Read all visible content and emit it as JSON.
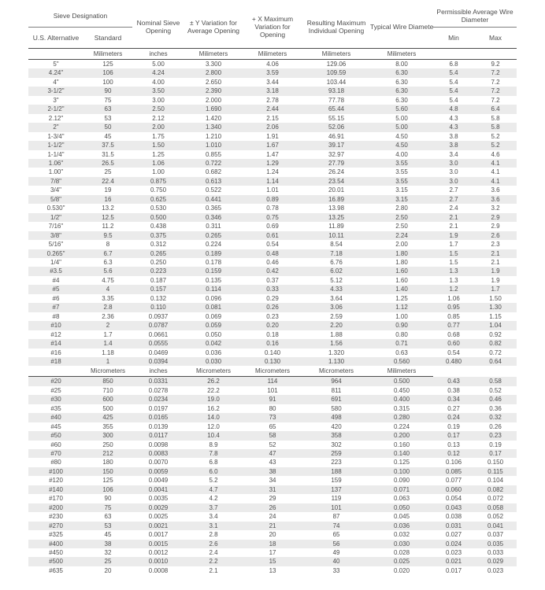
{
  "colors": {
    "text": "#4d4d4d",
    "rule": "#4d4d4d",
    "group_rule": "#7f7f7f",
    "row_stripe": "#ebebeb",
    "background": "#ffffff"
  },
  "table": {
    "header": {
      "sieve_designation": "Sieve Designation",
      "us_alternative": "U.S. Alternative",
      "standard": "Standard",
      "nominal_sieve_opening": "Nominal Sieve Opening",
      "y_variation": "± Y Variation for Average Opening",
      "x_max_variation": "+ X Maximum Variation for Opening",
      "resulting_max": "Resulting Maximum Individual Opening",
      "typical_wire": "Typical  Wire  Diameter",
      "permissible_avg_wire": "Permissible Average Wire Diameter",
      "min": "Min",
      "max": "Max"
    },
    "column_keys": [
      "us-alternative",
      "standard",
      "nominal-inches",
      "y-variation",
      "x-max-variation",
      "resulting-max",
      "typical-wire",
      "wire-min",
      "wire-max"
    ],
    "units_row_1": [
      "",
      "Milimeters",
      "inches",
      "Milimeters",
      "Milimeters",
      "Milimeters",
      "Milimeters",
      "",
      ""
    ],
    "units_row_2": [
      "",
      "Micrometers",
      "inches",
      "Micrometers",
      "Micrometers",
      "Micrometers",
      "Milimeters",
      "",
      ""
    ],
    "rows_coarse": [
      [
        "5\"",
        "125",
        "5.00",
        "3.300",
        "4.06",
        "129.06",
        "8.00",
        "6.8",
        "9.2"
      ],
      [
        "4.24\"",
        "106",
        "4.24",
        "2.800",
        "3.59",
        "109.59",
        "6.30",
        "5.4",
        "7.2"
      ],
      [
        "4\"",
        "100",
        "4.00",
        "2.650",
        "3.44",
        "103.44",
        "6.30",
        "5.4",
        "7.2"
      ],
      [
        "3-1/2\"",
        "90",
        "3.50",
        "2.390",
        "3.18",
        "93.18",
        "6.30",
        "5.4",
        "7.2"
      ],
      [
        "3\"",
        "75",
        "3.00",
        "2.000",
        "2.78",
        "77.78",
        "6.30",
        "5.4",
        "7.2"
      ],
      [
        "2-1/2\"",
        "63",
        "2.50",
        "1.690",
        "2.44",
        "65.44",
        "5.60",
        "4.8",
        "6.4"
      ],
      [
        "2.12\"",
        "53",
        "2.12",
        "1.420",
        "2.15",
        "55.15",
        "5.00",
        "4.3",
        "5.8"
      ],
      [
        "2\"",
        "50",
        "2.00",
        "1.340",
        "2.06",
        "52.06",
        "5.00",
        "4.3",
        "5.8"
      ],
      [
        "1-3/4\"",
        "45",
        "1.75",
        "1.210",
        "1.91",
        "46.91",
        "4.50",
        "3.8",
        "5.2"
      ],
      [
        "1-1/2\"",
        "37.5",
        "1.50",
        "1.010",
        "1.67",
        "39.17",
        "4.50",
        "3.8",
        "5.2"
      ],
      [
        "1-1/4\"",
        "31.5",
        "1.25",
        "0.855",
        "1.47",
        "32.97",
        "4.00",
        "3.4",
        "4.6"
      ],
      [
        "1.06\"",
        "26.5",
        "1.06",
        "0.722",
        "1.29",
        "27.79",
        "3.55",
        "3.0",
        "4.1"
      ],
      [
        "1.00\"",
        "25",
        "1.00",
        "0.682",
        "1.24",
        "26.24",
        "3.55",
        "3.0",
        "4.1"
      ],
      [
        "7/8\"",
        "22.4",
        "0.875",
        "0.613",
        "1.14",
        "23.54",
        "3.55",
        "3.0",
        "4.1"
      ],
      [
        "3/4\"",
        "19",
        "0.750",
        "0.522",
        "1.01",
        "20.01",
        "3.15",
        "2.7",
        "3.6"
      ],
      [
        "5/8\"",
        "16",
        "0.625",
        "0.441",
        "0.89",
        "16.89",
        "3.15",
        "2.7",
        "3.6"
      ],
      [
        "0.530\"",
        "13.2",
        "0.530",
        "0.365",
        "0.78",
        "13.98",
        "2.80",
        "2.4",
        "3.2"
      ],
      [
        "1/2\"",
        "12.5",
        "0.500",
        "0.346",
        "0.75",
        "13.25",
        "2.50",
        "2.1",
        "2.9"
      ],
      [
        "7/16\"",
        "11.2",
        "0.438",
        "0.311",
        "0.69",
        "11.89",
        "2.50",
        "2.1",
        "2.9"
      ],
      [
        "3/8\"",
        "9.5",
        "0.375",
        "0.265",
        "0.61",
        "10.11",
        "2.24",
        "1.9",
        "2.6"
      ],
      [
        "5/16\"",
        "8",
        "0.312",
        "0.224",
        "0.54",
        "8.54",
        "2.00",
        "1.7",
        "2.3"
      ],
      [
        "0.265\"",
        "6.7",
        "0.265",
        "0.189",
        "0.48",
        "7.18",
        "1.80",
        "1.5",
        "2.1"
      ],
      [
        "1/4\"",
        "6.3",
        "0.250",
        "0.178",
        "0.46",
        "6.76",
        "1.80",
        "1.5",
        "2.1"
      ],
      [
        "#3.5",
        "5.6",
        "0.223",
        "0.159",
        "0.42",
        "6.02",
        "1.60",
        "1.3",
        "1.9"
      ],
      [
        "#4",
        "4.75",
        "0.187",
        "0.135",
        "0.37",
        "5.12",
        "1.60",
        "1.3",
        "1.9"
      ],
      [
        "#5",
        "4",
        "0.157",
        "0.114",
        "0.33",
        "4.33",
        "1.40",
        "1.2",
        "1.7"
      ],
      [
        "#6",
        "3.35",
        "0.132",
        "0.096",
        "0.29",
        "3.64",
        "1.25",
        "1.06",
        "1.50"
      ],
      [
        "#7",
        "2.8",
        "0.110",
        "0.081",
        "0.26",
        "3.06",
        "1.12",
        "0.95",
        "1.30"
      ],
      [
        "#8",
        "2.36",
        "0.0937",
        "0.069",
        "0.23",
        "2.59",
        "1.00",
        "0.85",
        "1.15"
      ],
      [
        "#10",
        "2",
        "0.0787",
        "0.059",
        "0.20",
        "2.20",
        "0.90",
        "0.77",
        "1.04"
      ],
      [
        "#12",
        "1.7",
        "0.0661",
        "0.050",
        "0.18",
        "1.88",
        "0.80",
        "0.68",
        "0.92"
      ],
      [
        "#14",
        "1.4",
        "0.0555",
        "0.042",
        "0.16",
        "1.56",
        "0.71",
        "0.60",
        "0.82"
      ],
      [
        "#16",
        "1.18",
        "0.0469",
        "0.036",
        "0.140",
        "1.320",
        "0.63",
        "0.54",
        "0.72"
      ],
      [
        "#18",
        "1",
        "0.0394",
        "0.030",
        "0.130",
        "1.130",
        "0.560",
        "0.480",
        "0.64"
      ]
    ],
    "rows_fine": [
      [
        "#20",
        "850",
        "0.0331",
        "26.2",
        "114",
        "964",
        "0.500",
        "0.43",
        "0.58"
      ],
      [
        "#25",
        "710",
        "0.0278",
        "22.2",
        "101",
        "811",
        "0.450",
        "0.38",
        "0.52"
      ],
      [
        "#30",
        "600",
        "0.0234",
        "19.0",
        "91",
        "691",
        "0.400",
        "0.34",
        "0.46"
      ],
      [
        "#35",
        "500",
        "0.0197",
        "16.2",
        "80",
        "580",
        "0.315",
        "0.27",
        "0.36"
      ],
      [
        "#40",
        "425",
        "0.0165",
        "14.0",
        "73",
        "498",
        "0.280",
        "0.24",
        "0.32"
      ],
      [
        "#45",
        "355",
        "0.0139",
        "12.0",
        "65",
        "420",
        "0.224",
        "0.19",
        "0.26"
      ],
      [
        "#50",
        "300",
        "0.0117",
        "10.4",
        "58",
        "358",
        "0.200",
        "0.17",
        "0.23"
      ],
      [
        "#60",
        "250",
        "0.0098",
        "8.9",
        "52",
        "302",
        "0.160",
        "0.13",
        "0.19"
      ],
      [
        "#70",
        "212",
        "0.0083",
        "7.8",
        "47",
        "259",
        "0.140",
        "0.12",
        "0.17"
      ],
      [
        "#80",
        "180",
        "0.0070",
        "6.8",
        "43",
        "223",
        "0.125",
        "0.106",
        "0.150"
      ],
      [
        "#100",
        "150",
        "0.0059",
        "6.0",
        "38",
        "188",
        "0.100",
        "0.085",
        "0.115"
      ],
      [
        "#120",
        "125",
        "0.0049",
        "5.2",
        "34",
        "159",
        "0.090",
        "0.077",
        "0.104"
      ],
      [
        "#140",
        "106",
        "0.0041",
        "4.7",
        "31",
        "137",
        "0.071",
        "0.060",
        "0.082"
      ],
      [
        "#170",
        "90",
        "0.0035",
        "4.2",
        "29",
        "119",
        "0.063",
        "0.054",
        "0.072"
      ],
      [
        "#200",
        "75",
        "0.0029",
        "3.7",
        "26",
        "101",
        "0.050",
        "0.043",
        "0.058"
      ],
      [
        "#230",
        "63",
        "0.0025",
        "3.4",
        "24",
        "87",
        "0.045",
        "0.038",
        "0.052"
      ],
      [
        "#270",
        "53",
        "0.0021",
        "3.1",
        "21",
        "74",
        "0.036",
        "0.031",
        "0.041"
      ],
      [
        "#325",
        "45",
        "0.0017",
        "2.8",
        "20",
        "65",
        "0.032",
        "0.027",
        "0.037"
      ],
      [
        "#400",
        "38",
        "0.0015",
        "2.6",
        "18",
        "56",
        "0.030",
        "0.024",
        "0.035"
      ],
      [
        "#450",
        "32",
        "0.0012",
        "2.4",
        "17",
        "49",
        "0.028",
        "0.023",
        "0.033"
      ],
      [
        "#500",
        "25",
        "0.0010",
        "2.2",
        "15",
        "40",
        "0.025",
        "0.021",
        "0.029"
      ],
      [
        "#635",
        "20",
        "0.0008",
        "2.1",
        "13",
        "33",
        "0.020",
        "0.017",
        "0.023"
      ]
    ]
  }
}
